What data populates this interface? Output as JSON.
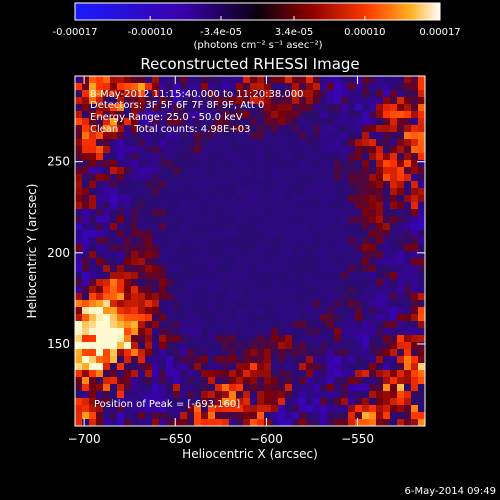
{
  "colorbar": {
    "tick_labels": [
      "-0.00017",
      "-0.00010",
      "-3.4e-05",
      "3.4e-05",
      "0.00010",
      "0.00017"
    ],
    "tick_values": [
      -0.00017,
      -0.0001,
      -3.4e-05,
      3.4e-05,
      0.0001,
      0.00017
    ],
    "range": [
      -0.00017,
      0.00017
    ],
    "units_label": "(photons cm⁻² s⁻¹ asec⁻²)"
  },
  "chart_data": {
    "type": "heatmap",
    "title": "Reconstructed RHESSI Image",
    "xlabel": "Heliocentric X (arcsec)",
    "ylabel": "Heliocentric Y (arcsec)",
    "xlim": [
      -705,
      -513
    ],
    "ylim": [
      105,
      297
    ],
    "x_ticks": [
      -700,
      -650,
      -600,
      -550
    ],
    "y_ticks": [
      150,
      200,
      250
    ],
    "x_tick_labels": [
      "−700",
      "−650",
      "−600",
      "−550"
    ],
    "y_tick_labels": [
      "150",
      "200",
      "250"
    ],
    "peak_position": [
      -693,
      160
    ],
    "info_lines": [
      "8-May-2012 11:15:40.000 to 11:20:38.000",
      "Detectors: 3F 5F 6F 7F 8F 9F, Att 0",
      "Energy Range: 25.0 - 50.0 keV",
      "Clean     Total counts: 4.98E+03"
    ],
    "peak_label": "Position of Peak = [-693,160]"
  },
  "footer": {
    "date": "6-May-2014 09:49"
  }
}
